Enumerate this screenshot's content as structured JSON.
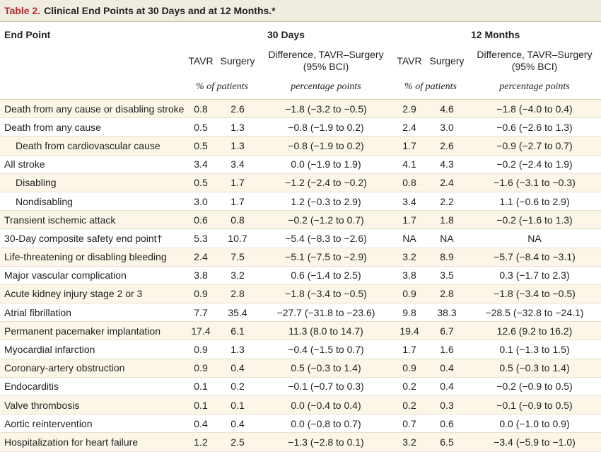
{
  "title": {
    "label": "Table 2.",
    "text": "Clinical End Points at 30 Days and at 12 Months.*"
  },
  "headers": {
    "end_point": "End Point",
    "days30": "30 Days",
    "months12": "12 Months",
    "tavr": "TAVR",
    "surgery": "Surgery",
    "diff_line1": "Difference, TAVR–Surgery",
    "diff_line2": "(95% BCI)",
    "pct_patients": "% of patients",
    "pct_points": "percentage points"
  },
  "rows": [
    {
      "name": "Death from any cause or disabling stroke",
      "indent": false,
      "t30": "0.8",
      "s30": "2.6",
      "d30": "−1.8 (−3.2 to −0.5)",
      "t12": "2.9",
      "s12": "4.6",
      "d12": "−1.8 (−4.0 to 0.4)"
    },
    {
      "name": "Death from any cause",
      "indent": false,
      "t30": "0.5",
      "s30": "1.3",
      "d30": "−0.8 (−1.9 to 0.2)",
      "t12": "2.4",
      "s12": "3.0",
      "d12": "−0.6 (−2.6 to 1.3)"
    },
    {
      "name": "Death from cardiovascular cause",
      "indent": true,
      "t30": "0.5",
      "s30": "1.3",
      "d30": "−0.8 (−1.9 to 0.2)",
      "t12": "1.7",
      "s12": "2.6",
      "d12": "−0.9 (−2.7 to 0.7)"
    },
    {
      "name": "All stroke",
      "indent": false,
      "t30": "3.4",
      "s30": "3.4",
      "d30": "0.0 (−1.9 to 1.9)",
      "t12": "4.1",
      "s12": "4.3",
      "d12": "−0.2 (−2.4 to 1.9)"
    },
    {
      "name": "Disabling",
      "indent": true,
      "t30": "0.5",
      "s30": "1.7",
      "d30": "−1.2 (−2.4 to −0.2)",
      "t12": "0.8",
      "s12": "2.4",
      "d12": "−1.6 (−3.1 to −0.3)"
    },
    {
      "name": "Nondisabling",
      "indent": true,
      "t30": "3.0",
      "s30": "1.7",
      "d30": "1.2 (−0.3 to 2.9)",
      "t12": "3.4",
      "s12": "2.2",
      "d12": "1.1 (−0.6 to 2.9)"
    },
    {
      "name": "Transient ischemic attack",
      "indent": false,
      "t30": "0.6",
      "s30": "0.8",
      "d30": "−0.2 (−1.2 to 0.7)",
      "t12": "1.7",
      "s12": "1.8",
      "d12": "−0.2 (−1.6 to 1.3)"
    },
    {
      "name": "30-Day composite safety end point†",
      "indent": false,
      "t30": "5.3",
      "s30": "10.7",
      "d30": "−5.4 (−8.3 to −2.6)",
      "t12": "NA",
      "s12": "NA",
      "d12": "NA"
    },
    {
      "name": "Life-threatening or disabling bleeding",
      "indent": false,
      "t30": "2.4",
      "s30": "7.5",
      "d30": "−5.1 (−7.5 to −2.9)",
      "t12": "3.2",
      "s12": "8.9",
      "d12": "−5.7 (−8.4 to −3.1)"
    },
    {
      "name": "Major vascular complication",
      "indent": false,
      "t30": "3.8",
      "s30": "3.2",
      "d30": "0.6 (−1.4 to 2.5)",
      "t12": "3.8",
      "s12": "3.5",
      "d12": "0.3 (−1.7 to 2.3)"
    },
    {
      "name": "Acute kidney injury stage 2 or 3",
      "indent": false,
      "t30": "0.9",
      "s30": "2.8",
      "d30": "−1.8 (−3.4 to −0.5)",
      "t12": "0.9",
      "s12": "2.8",
      "d12": "−1.8 (−3.4 to −0.5)"
    },
    {
      "name": "Atrial fibrillation",
      "indent": false,
      "t30": "7.7",
      "s30": "35.4",
      "d30": "−27.7 (−31.8 to −23.6)",
      "t12": "9.8",
      "s12": "38.3",
      "d12": "−28.5 (−32.8 to −24.1)"
    },
    {
      "name": "Permanent pacemaker implantation",
      "indent": false,
      "t30": "17.4",
      "s30": "6.1",
      "d30": "11.3 (8.0 to 14.7)",
      "t12": "19.4",
      "s12": "6.7",
      "d12": "12.6 (9.2 to 16.2)"
    },
    {
      "name": "Myocardial infarction",
      "indent": false,
      "t30": "0.9",
      "s30": "1.3",
      "d30": "−0.4 (−1.5 to 0.7)",
      "t12": "1.7",
      "s12": "1.6",
      "d12": "0.1 (−1.3 to 1.5)"
    },
    {
      "name": "Coronary-artery obstruction",
      "indent": false,
      "t30": "0.9",
      "s30": "0.4",
      "d30": "0.5 (−0.3 to 1.4)",
      "t12": "0.9",
      "s12": "0.4",
      "d12": "0.5 (−0.3 to 1.4)"
    },
    {
      "name": "Endocarditis",
      "indent": false,
      "t30": "0.1",
      "s30": "0.2",
      "d30": "−0.1 (−0.7 to 0.3)",
      "t12": "0.2",
      "s12": "0.4",
      "d12": "−0.2 (−0.9 to 0.5)"
    },
    {
      "name": "Valve thrombosis",
      "indent": false,
      "t30": "0.1",
      "s30": "0.1",
      "d30": "0.0 (−0.4 to 0.4)",
      "t12": "0.2",
      "s12": "0.3",
      "d12": "−0.1 (−0.9 to 0.5)"
    },
    {
      "name": "Aortic reintervention",
      "indent": false,
      "t30": "0.4",
      "s30": "0.4",
      "d30": "0.0 (−0.8 to 0.7)",
      "t12": "0.7",
      "s12": "0.6",
      "d12": "0.0 (−1.0 to 0.9)"
    },
    {
      "name": "Hospitalization for heart failure",
      "indent": false,
      "t30": "1.2",
      "s30": "2.5",
      "d30": "−1.3 (−2.8 to 0.1)",
      "t12": "3.2",
      "s12": "6.5",
      "d12": "−3.4 (−5.9 to −1.0)"
    }
  ]
}
